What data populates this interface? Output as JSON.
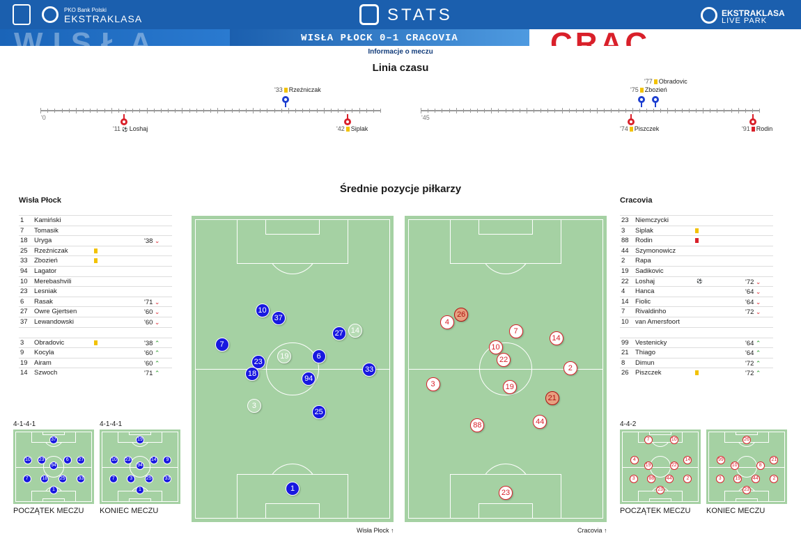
{
  "header": {
    "pko_small": "PKO Bank Polski",
    "ekstraklasa": "EKSTRAKLASA",
    "stats": "STATS",
    "livepark_1": "EKSTRAKLASA",
    "livepark_2": "LIVE PARK",
    "score": "WISŁA PŁOCK 0–1 CRACOVIA",
    "info_link": "Informacje o meczu"
  },
  "timeline": {
    "title": "Linia czasu",
    "start_1": "'0",
    "start_2": "'45",
    "events": [
      {
        "minute": "'11",
        "player": "Loshaj",
        "type": "goal",
        "team": "away"
      },
      {
        "minute": "'33",
        "player": "Rzeźniczak",
        "type": "yellow",
        "team": "home"
      },
      {
        "minute": "'42",
        "player": "Siplak",
        "type": "yellow",
        "team": "away"
      },
      {
        "minute": "'74",
        "player": "Piszczek",
        "type": "yellow",
        "team": "away"
      },
      {
        "minute": "'75",
        "player": "Zbozień",
        "type": "yellow",
        "team": "home"
      },
      {
        "minute": "'77",
        "player": "Obradovic",
        "type": "yellow",
        "team": "home"
      },
      {
        "minute": "'91",
        "player": "Rodin",
        "type": "red",
        "team": "away"
      }
    ]
  },
  "positions": {
    "title": "Średnie pozycje piłkarzy",
    "home_team": "Wisła Płock",
    "away_team": "Cracovia",
    "home_dir": "Wisła Płock",
    "away_dir": "Cracovia",
    "home_starting": [
      {
        "num": "1",
        "name": "Kamiński",
        "card": "",
        "sub": ""
      },
      {
        "num": "7",
        "name": "Tomasik",
        "card": "",
        "sub": ""
      },
      {
        "num": "18",
        "name": "Uryga",
        "card": "",
        "sub": "'38",
        "dir": "down"
      },
      {
        "num": "25",
        "name": "Rzeźniczak",
        "card": "yellow",
        "sub": ""
      },
      {
        "num": "33",
        "name": "Zbozień",
        "card": "yellow",
        "sub": ""
      },
      {
        "num": "94",
        "name": "Lagator",
        "card": "",
        "sub": ""
      },
      {
        "num": "10",
        "name": "Merebashvili",
        "card": "",
        "sub": ""
      },
      {
        "num": "23",
        "name": "Lesniak",
        "card": "",
        "sub": ""
      },
      {
        "num": "6",
        "name": "Rasak",
        "card": "",
        "sub": "'71",
        "dir": "down"
      },
      {
        "num": "27",
        "name": "Owre Gjertsen",
        "card": "",
        "sub": "'60",
        "dir": "down"
      },
      {
        "num": "37",
        "name": "Lewandowski",
        "card": "",
        "sub": "'60",
        "dir": "down"
      }
    ],
    "home_subs": [
      {
        "num": "3",
        "name": "Obradovic",
        "card": "yellow",
        "sub": "'38",
        "dir": "up"
      },
      {
        "num": "9",
        "name": "Kocyla",
        "card": "",
        "sub": "'60",
        "dir": "up"
      },
      {
        "num": "19",
        "name": "Airam",
        "card": "",
        "sub": "'60",
        "dir": "up"
      },
      {
        "num": "14",
        "name": "Szwoch",
        "card": "",
        "sub": "'71",
        "dir": "up"
      }
    ],
    "away_starting": [
      {
        "num": "23",
        "name": "Niemczycki",
        "card": "",
        "sub": ""
      },
      {
        "num": "3",
        "name": "Siplak",
        "card": "yellow",
        "sub": ""
      },
      {
        "num": "88",
        "name": "Rodin",
        "card": "red",
        "sub": ""
      },
      {
        "num": "44",
        "name": "Szymonowicz",
        "card": "",
        "sub": ""
      },
      {
        "num": "2",
        "name": "Rapa",
        "card": "",
        "sub": ""
      },
      {
        "num": "19",
        "name": "Sadikovic",
        "card": "",
        "sub": ""
      },
      {
        "num": "22",
        "name": "Loshaj",
        "card": "goal",
        "sub": "'72",
        "dir": "down"
      },
      {
        "num": "4",
        "name": "Hanca",
        "card": "",
        "sub": "'64",
        "dir": "down"
      },
      {
        "num": "14",
        "name": "Fiolic",
        "card": "",
        "sub": "'64",
        "dir": "down"
      },
      {
        "num": "7",
        "name": "Rivaldinho",
        "card": "",
        "sub": "'72",
        "dir": "down"
      },
      {
        "num": "10",
        "name": "van Amersfoort",
        "card": "",
        "sub": ""
      }
    ],
    "away_subs": [
      {
        "num": "99",
        "name": "Vestenicky",
        "card": "",
        "sub": "'64",
        "dir": "up"
      },
      {
        "num": "21",
        "name": "Thiago",
        "card": "",
        "sub": "'64",
        "dir": "up"
      },
      {
        "num": "8",
        "name": "Dimun",
        "card": "",
        "sub": "'72",
        "dir": "up"
      },
      {
        "num": "26",
        "name": "Piszczek",
        "card": "yellow",
        "sub": "'72",
        "dir": "up"
      }
    ]
  },
  "formations": {
    "home_start": "4-1-4-1",
    "home_end": "4-1-4-1",
    "away": "4-4-2",
    "start_caption": "POCZĄTEK MECZU",
    "end_caption": "KONIEC MECZU"
  },
  "colors": {
    "home": "#1818e0",
    "away": "#d9202a",
    "pitch": "#a5d1a3",
    "header": "#1b5fae"
  }
}
